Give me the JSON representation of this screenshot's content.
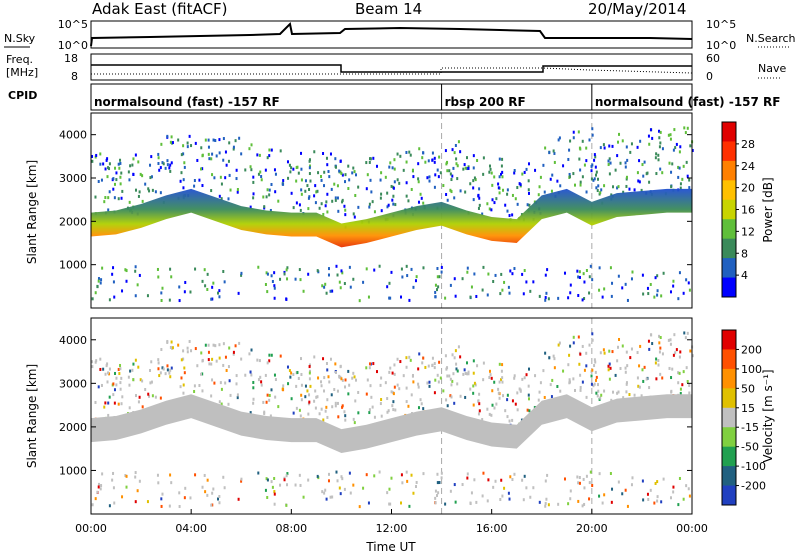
{
  "header": {
    "title": "Adak East (fitACF)",
    "beam": "Beam 14",
    "date": "20/May/2014"
  },
  "noise_panel": {
    "left_label": "N.Sky",
    "left_ticks": [
      "10^5",
      "10^0"
    ],
    "right_label": "N.Search",
    "right_ticks": [
      "10^5",
      "10^0"
    ]
  },
  "freq_panel": {
    "left_label_line1": "Freq.",
    "left_label_line2": "[MHz]",
    "left_ticks": [
      "18",
      "8"
    ],
    "right_label": "Nave",
    "right_ticks": [
      "60",
      "0"
    ]
  },
  "cpid_panel": {
    "label": "CPID",
    "modes": [
      {
        "text": "normalsound (fast) -157 RF",
        "start_h": 0,
        "end_h": 14
      },
      {
        "text": "rbsp 200 RF",
        "start_h": 14,
        "end_h": 20
      },
      {
        "text": "normalsound (fast) -157 RF",
        "start_h": 20,
        "end_h": 24
      }
    ]
  },
  "colors": {
    "power_scale": [
      "#0000ff",
      "#2060c0",
      "#3a8a5a",
      "#5fbf3a",
      "#c8d400",
      "#ffc000",
      "#ff8000",
      "#ff3000",
      "#e00000"
    ],
    "velocity_scale": [
      "#2040c0",
      "#206080",
      "#20a050",
      "#80d040",
      "#c0c0c0",
      "#e0c000",
      "#ff9000",
      "#ff5000",
      "#e00000"
    ]
  },
  "chart_data": [
    {
      "type": "heatmap",
      "title": "Power",
      "ylabel": "Slant Range [km]",
      "yticks": [
        "4000",
        "3000",
        "2000",
        "1000"
      ],
      "ylim": [
        0,
        4500
      ],
      "colorbar_label": "Power [dB]",
      "colorbar_ticks": [
        "28",
        "24",
        "20",
        "16",
        "12",
        "8",
        "4"
      ],
      "colorbar_range": [
        0,
        30
      ],
      "main_band_lower_edge_km": [
        [
          0,
          1650
        ],
        [
          1,
          1700
        ],
        [
          2,
          1850
        ],
        [
          3,
          2050
        ],
        [
          4,
          2200
        ],
        [
          5,
          2000
        ],
        [
          6,
          1800
        ],
        [
          7,
          1700
        ],
        [
          8,
          1650
        ],
        [
          9,
          1650
        ],
        [
          10,
          1400
        ],
        [
          11,
          1500
        ],
        [
          12,
          1650
        ],
        [
          13,
          1800
        ],
        [
          14,
          1900
        ],
        [
          15,
          1700
        ],
        [
          16,
          1550
        ],
        [
          17,
          1500
        ],
        [
          18,
          2050
        ],
        [
          19,
          2200
        ],
        [
          20,
          1900
        ],
        [
          21,
          2100
        ],
        [
          22,
          2150
        ],
        [
          23,
          2200
        ],
        [
          24,
          2200
        ]
      ]
    },
    {
      "type": "heatmap",
      "title": "Velocity",
      "ylabel": "Slant Range [km]",
      "yticks": [
        "4000",
        "3000",
        "2000",
        "1000"
      ],
      "ylim": [
        0,
        4500
      ],
      "xlabel": "Time UT",
      "xticks": [
        "00:00",
        "04:00",
        "08:00",
        "12:00",
        "16:00",
        "20:00",
        "00:00"
      ],
      "xlim_hours": [
        0,
        24
      ],
      "colorbar_label": "Velocity [m s⁻¹]",
      "colorbar_ticks": [
        "200",
        "100",
        "50",
        "15",
        "-15",
        "-50",
        "-100",
        "-200"
      ],
      "colorbar_range": [
        -250,
        250
      ]
    }
  ]
}
